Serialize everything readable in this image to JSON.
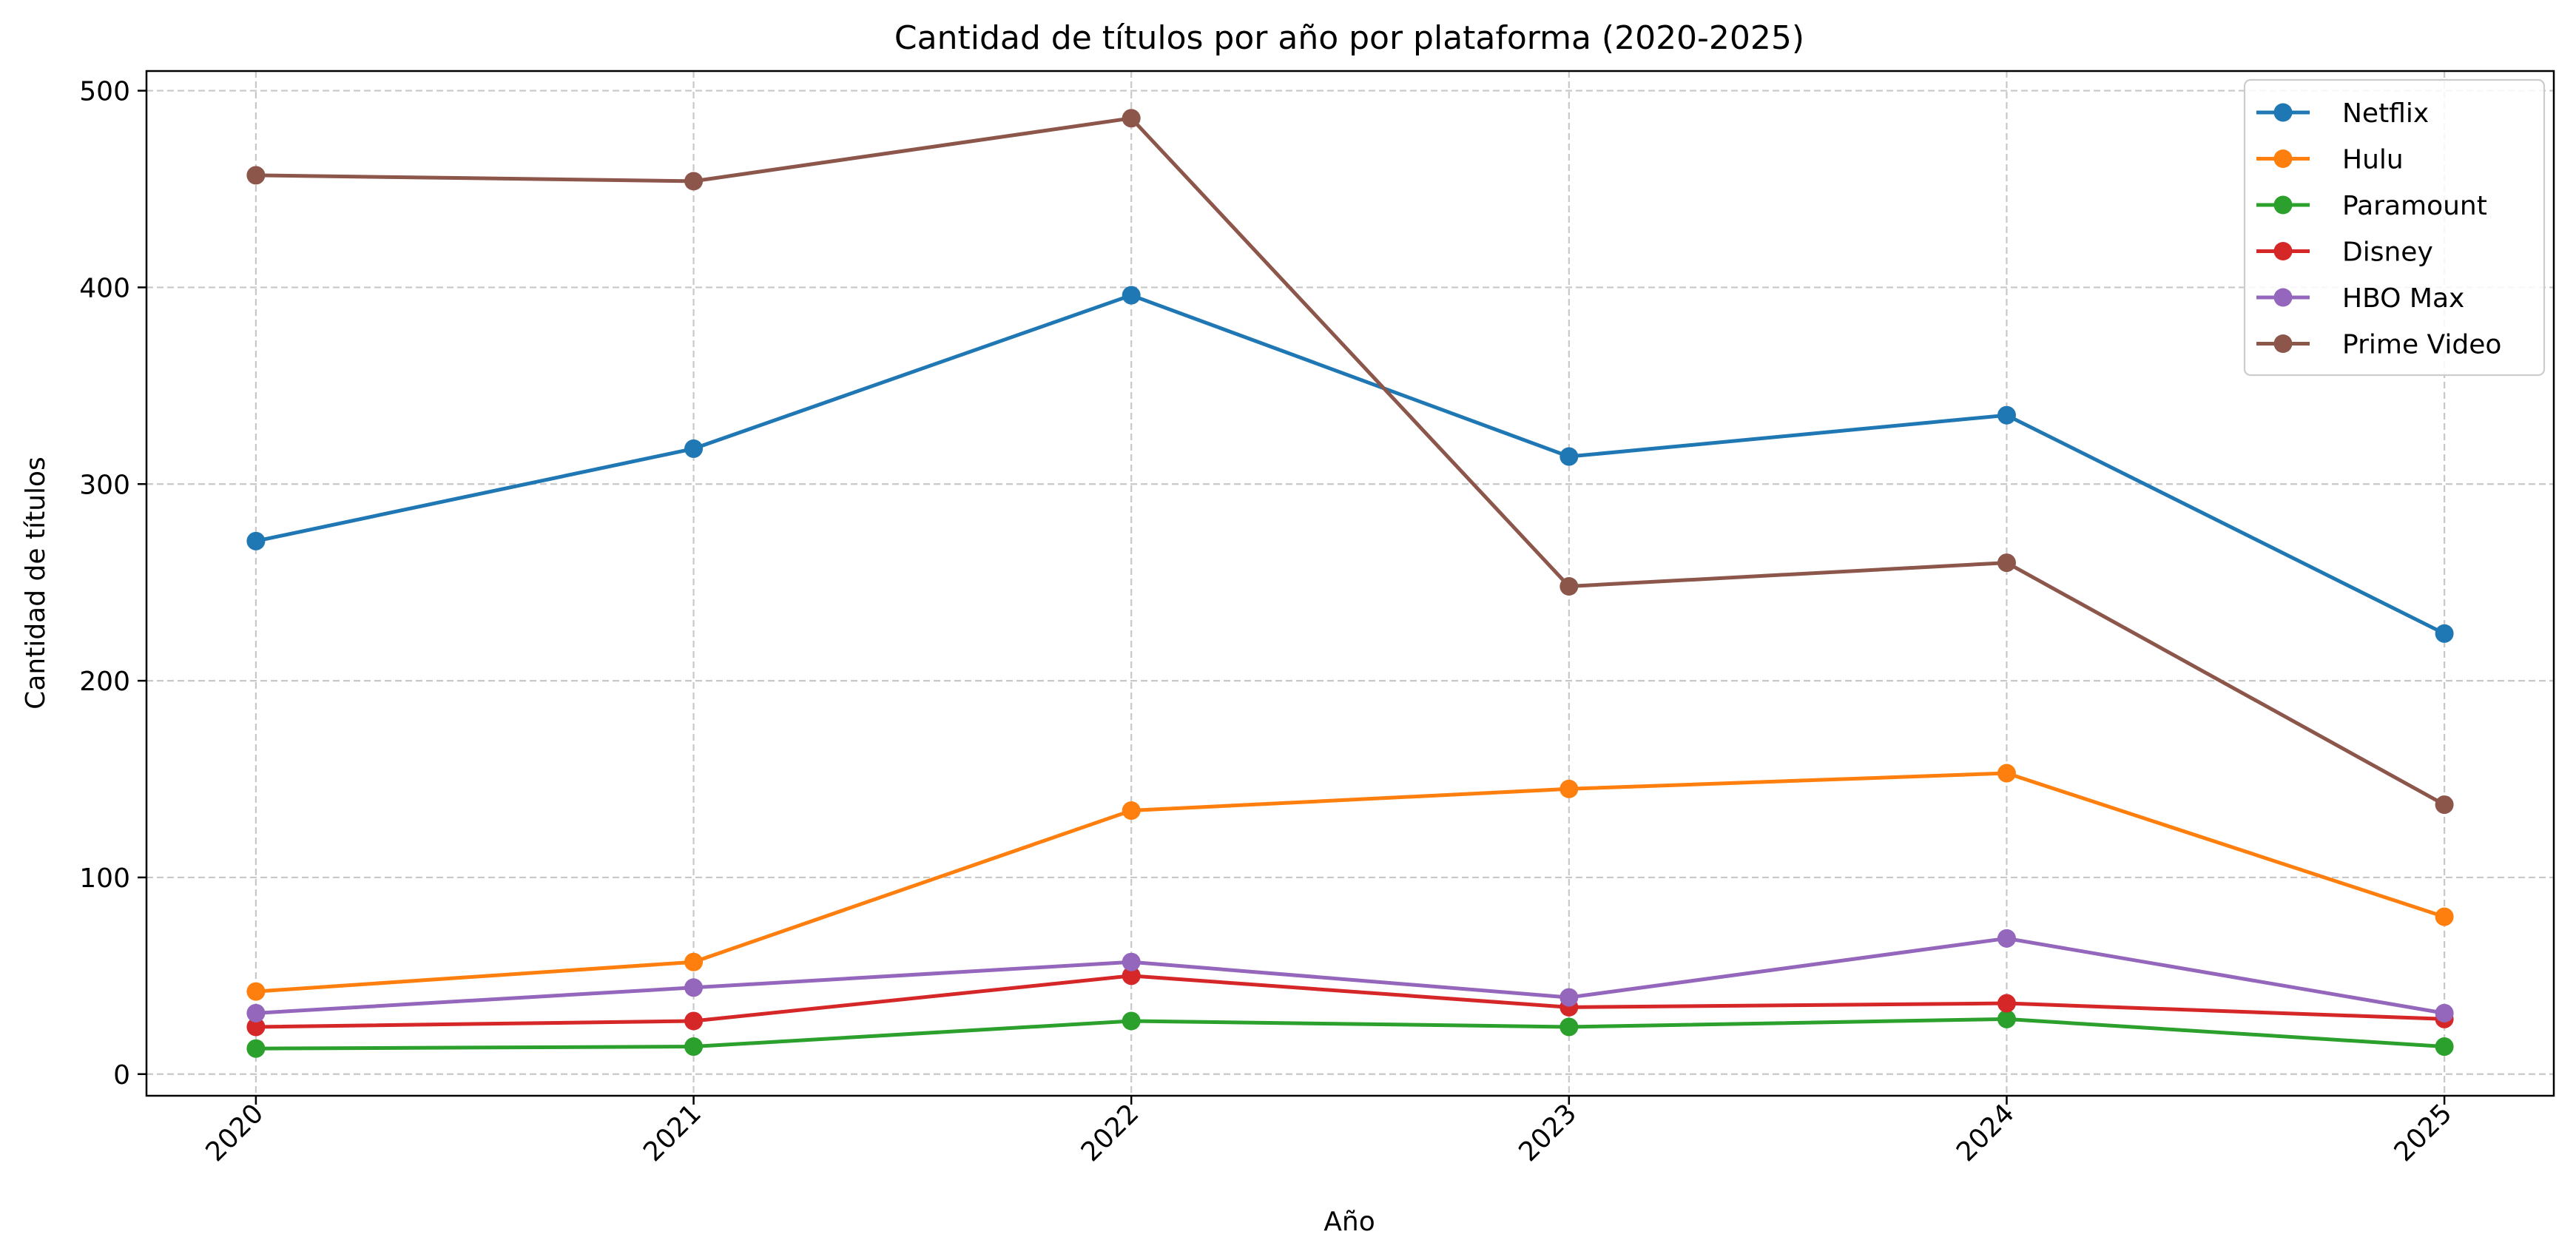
{
  "chart_data": {
    "type": "line",
    "title": "Cantidad de títulos por año por plataforma (2020-2025)",
    "xlabel": "Año",
    "ylabel": "Cantidad de títulos",
    "x": [
      2020,
      2021,
      2022,
      2023,
      2024,
      2025
    ],
    "x_tick_labels": [
      "2020",
      "2021",
      "2022",
      "2023",
      "2024",
      "2025"
    ],
    "y_ticks": [
      0,
      100,
      200,
      300,
      400,
      500
    ],
    "y_tick_labels": [
      "0",
      "100",
      "200",
      "300",
      "400",
      "500"
    ],
    "xlim": [
      2019.75,
      2025.25
    ],
    "ylim": [
      -11,
      510
    ],
    "grid": true,
    "legend_position": "top-right",
    "series": [
      {
        "name": "Netflix",
        "color": "#1f77b4",
        "values": [
          271,
          318,
          396,
          314,
          335,
          224
        ]
      },
      {
        "name": "Hulu",
        "color": "#ff7f0e",
        "values": [
          42,
          57,
          134,
          145,
          153,
          80
        ]
      },
      {
        "name": "Paramount",
        "color": "#2ca02c",
        "values": [
          13,
          14,
          27,
          24,
          28,
          14
        ]
      },
      {
        "name": "Disney",
        "color": "#d62728",
        "values": [
          24,
          27,
          50,
          34,
          36,
          28
        ]
      },
      {
        "name": "HBO Max",
        "color": "#9467bd",
        "values": [
          31,
          44,
          57,
          39,
          69,
          31
        ]
      },
      {
        "name": "Prime Video",
        "color": "#8c564b",
        "values": [
          457,
          454,
          486,
          248,
          260,
          137
        ]
      }
    ]
  }
}
